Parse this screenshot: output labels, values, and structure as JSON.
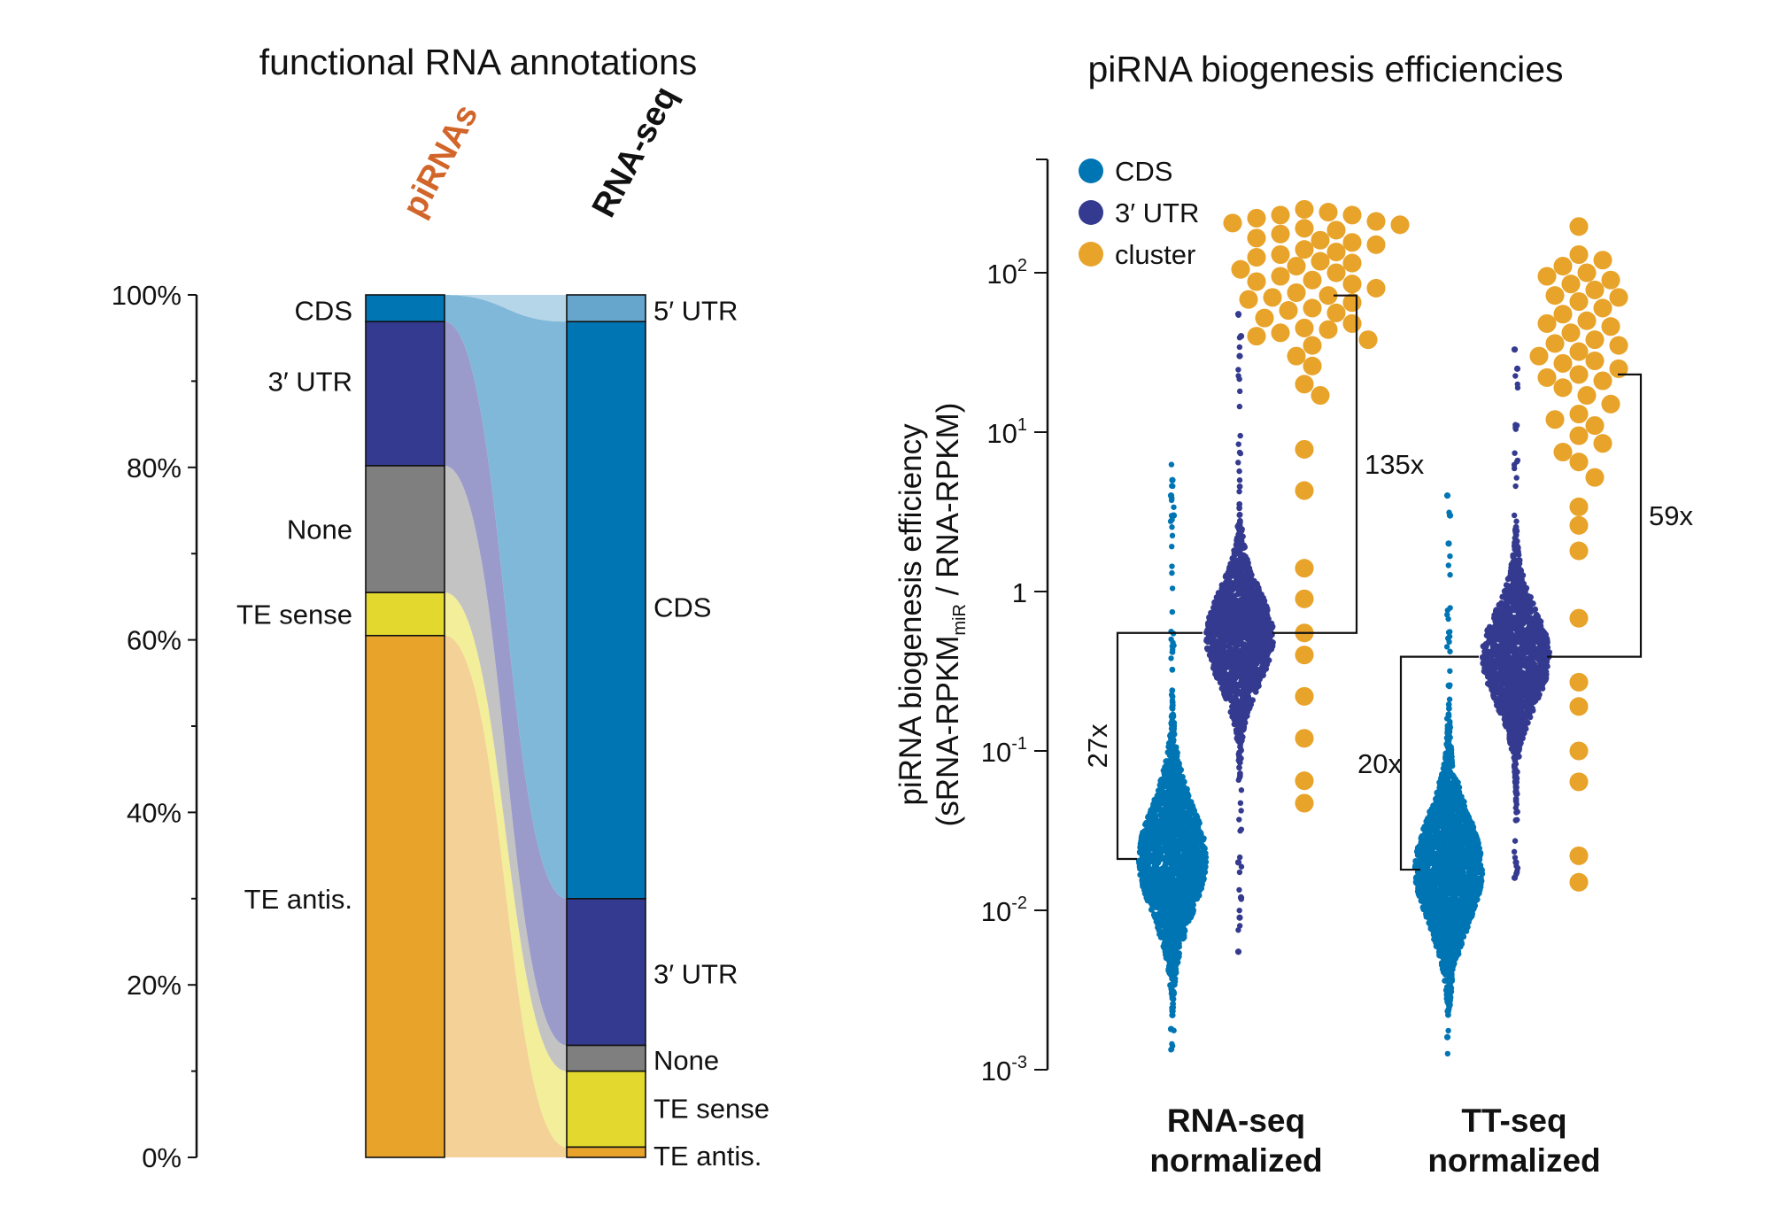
{
  "chart_data": [
    {
      "type": "stacked-bar-alluvial",
      "title": "functional RNA annotations",
      "yaxis": {
        "min": 0,
        "max": 100,
        "ticks": [
          "0%",
          "20%",
          "40%",
          "60%",
          "80%",
          "100%"
        ]
      },
      "columns": [
        {
          "label": "piRNAs",
          "color": "#D2652A",
          "segments": [
            {
              "name": "TE antis.",
              "label": "TE antis.",
              "value": 60.5,
              "color": "#E8A32A"
            },
            {
              "name": "TE sense",
              "label": "TE sense",
              "value": 5.0,
              "color": "#E3D92E"
            },
            {
              "name": "None",
              "label": "None",
              "value": 14.7,
              "color": "#7F7F7F"
            },
            {
              "name": "3UTR",
              "label": "3′ UTR",
              "value": 16.7,
              "color": "#343A8F"
            },
            {
              "name": "CDS",
              "label": "CDS",
              "value": 3.1,
              "color": "#0075B4"
            }
          ]
        },
        {
          "label": "RNA-seq",
          "color": "#111111",
          "segments": [
            {
              "name": "TE antis.",
              "label": "TE antis.",
              "value": 1.2,
              "color": "#E8A32A"
            },
            {
              "name": "TE sense",
              "label": "TE sense",
              "value": 8.8,
              "color": "#E3D92E"
            },
            {
              "name": "None",
              "label": "None",
              "value": 3.0,
              "color": "#7F7F7F"
            },
            {
              "name": "3UTR",
              "label": "3′ UTR",
              "value": 17.0,
              "color": "#343A8F"
            },
            {
              "name": "CDS",
              "label": "CDS",
              "value": 66.9,
              "color": "#0075B4"
            },
            {
              "name": "5UTR",
              "label": "5′ UTR",
              "value": 3.1,
              "color": "#66A6CC"
            }
          ]
        }
      ]
    },
    {
      "type": "scatter",
      "title": "piRNA biogenesis efficiencies",
      "ylabel_line1": "piRNA biogenesis efficiency",
      "ylabel_line2_pre": "(sRNA-RPKM",
      "ylabel_line2_sub": "miR",
      "ylabel_line2_post": " / RNA-RPKM)",
      "yscale": "log",
      "ylim": [
        0.001,
        300
      ],
      "yticks": [
        {
          "value": 0.001,
          "base": "10",
          "exp": "-3"
        },
        {
          "value": 0.01,
          "base": "10",
          "exp": "-2"
        },
        {
          "value": 0.1,
          "base": "10",
          "exp": "-1"
        },
        {
          "value": 1,
          "base": "1",
          "exp": ""
        },
        {
          "value": 10,
          "base": "10",
          "exp": "1"
        },
        {
          "value": 100,
          "base": "10",
          "exp": "2"
        }
      ],
      "legend": [
        {
          "name": "CDS",
          "color": "#0075B4"
        },
        {
          "name": "3′ UTR",
          "color": "#343A8F"
        },
        {
          "name": "cluster",
          "color": "#E8A32A"
        }
      ],
      "groups": [
        {
          "label_line1": "RNA-seq",
          "label_line2": "normalized",
          "series": [
            {
              "name": "CDS",
              "median": 0.021,
              "min": 0.0013,
              "max": 7.5,
              "n": 2000,
              "outliers": [
                0.0018,
                0.0022,
                3.0,
                4.0,
                5.0
              ]
            },
            {
              "name": "3′ UTR",
              "median": 0.52,
              "min": 0.0055,
              "max": 55,
              "n": 1400,
              "outliers": [
                0.0055,
                0.009,
                0.012,
                0.02,
                30,
                40,
                55
              ]
            },
            {
              "name": "cluster",
              "values": [
                250,
                240,
                230,
                220,
                210,
                200,
                190,
                185,
                175,
                165,
                155,
                150,
                140,
                130,
                125,
                118,
                110,
                105,
                100,
                95,
                90,
                85,
                80,
                75,
                72,
                68,
                65,
                60,
                56,
                52,
                48,
                45,
                42,
                38,
                35,
                30,
                26,
                20,
                17,
                7.8,
                4.3,
                1.4,
                0.9,
                0.55,
                0.4,
                0.22,
                0.12,
                0.065,
                0.047,
                230,
                205,
                160,
                135,
                115,
                88,
                70,
                58,
                44,
                40
              ]
            }
          ],
          "bracket_low": {
            "label": "27x",
            "from": 0.021,
            "to": 0.55
          },
          "bracket_high": {
            "label": "135x",
            "from": 0.55,
            "to": 72
          }
        },
        {
          "label_line1": "TT-seq",
          "label_line2": "normalized",
          "series": [
            {
              "name": "CDS",
              "median": 0.018,
              "min": 0.0012,
              "max": 4.0,
              "n": 2000,
              "outliers": [
                0.0016,
                2.0,
                3.0,
                4.0
              ]
            },
            {
              "name": "3′ UTR",
              "median": 0.39,
              "min": 0.016,
              "max": 33,
              "n": 1400,
              "outliers": [
                0.016,
                0.02,
                25,
                33
              ]
            },
            {
              "name": "cluster",
              "values": [
                195,
                130,
                110,
                100,
                90,
                85,
                78,
                72,
                66,
                60,
                55,
                50,
                46,
                42,
                38,
                35,
                32,
                30,
                27,
                25,
                23,
                21,
                19,
                17,
                15,
                13,
                12,
                11,
                9.5,
                8.5,
                7.5,
                6.5,
                5.2,
                3.4,
                2.6,
                1.8,
                0.68,
                0.27,
                0.19,
                0.1,
                0.064,
                0.022,
                0.015,
                120,
                95,
                70,
                48,
                36,
                28,
                22
              ]
            }
          ],
          "bracket_low": {
            "label": "20x",
            "from": 0.018,
            "to": 0.39
          },
          "bracket_high": {
            "label": "59x",
            "from": 0.39,
            "to": 23
          }
        }
      ]
    }
  ]
}
